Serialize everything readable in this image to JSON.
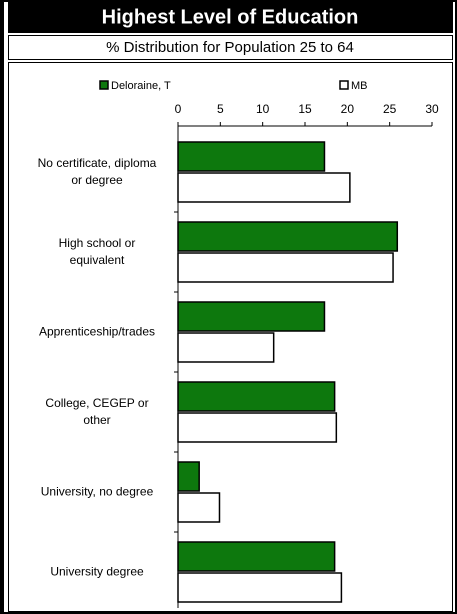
{
  "chart_data": {
    "type": "bar",
    "orientation": "horizontal",
    "title": "Highest Level of Education",
    "subtitle": "% Distribution for Population 25 to 64",
    "categories": [
      "No certificate, diploma or degree",
      "High school or equivalent",
      "Apprenticeship/trades",
      "College, CEGEP or other",
      "University, no degree",
      "University degree"
    ],
    "series": [
      {
        "name": "Deloraine, T",
        "color": "#0d780d",
        "values": [
          17.3,
          25.9,
          17.3,
          18.5,
          2.5,
          18.5
        ]
      },
      {
        "name": "MB",
        "color": "#ffffff",
        "values": [
          20.3,
          25.4,
          11.3,
          18.7,
          4.9,
          19.3
        ]
      }
    ],
    "xlim": [
      0,
      30
    ],
    "xticks": [
      0,
      5,
      10,
      15,
      20,
      25,
      30
    ],
    "grid": false
  }
}
